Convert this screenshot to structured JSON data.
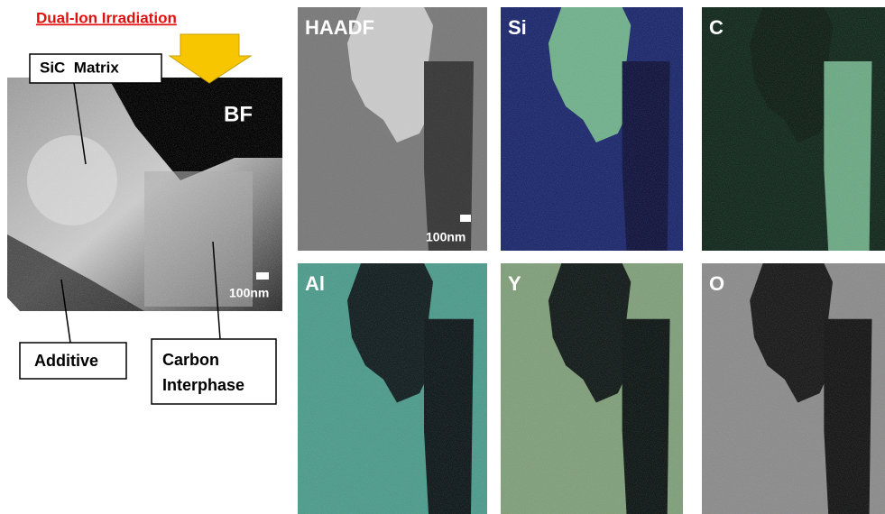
{
  "title": "Dual-Ion Irradiation",
  "bf_panel": {
    "label": "BF",
    "scale": "100nm",
    "matrix_label": "SiC  Matrix",
    "additive_label": "Additive",
    "interphase_label": [
      "Carbon",
      "Interphase"
    ]
  },
  "map_panels": [
    {
      "label": "HAADF",
      "scale": "100nm"
    },
    {
      "label": "Si"
    },
    {
      "label": "C"
    },
    {
      "label": "Al"
    },
    {
      "label": "Y"
    },
    {
      "label": "O"
    }
  ]
}
